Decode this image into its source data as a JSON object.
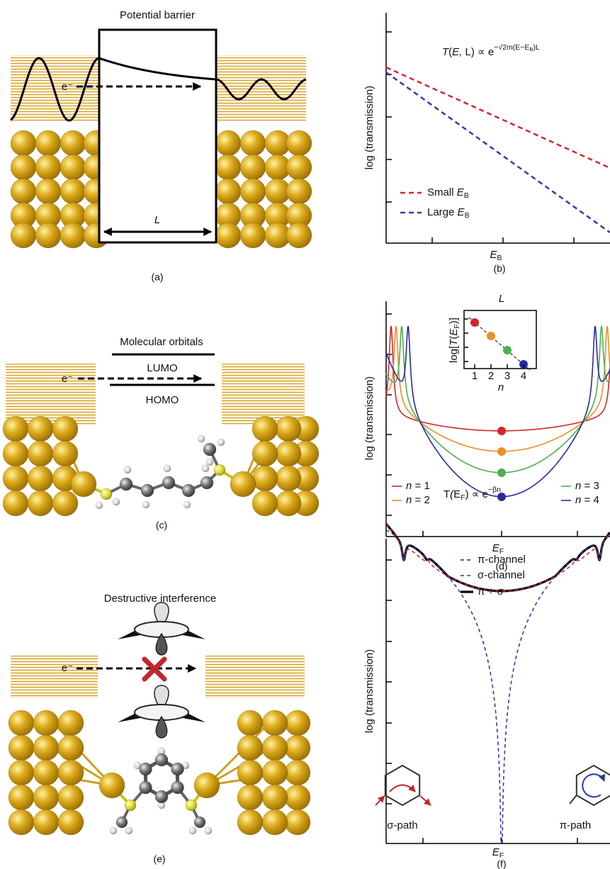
{
  "a": {
    "title": "Potential barrier",
    "electron": "e⁻",
    "width": "L",
    "caption": "(a)"
  },
  "b": {
    "formula": [
      "T",
      "(",
      "E",
      ", ",
      "L",
      ") ∝ e",
      "−√",
      "2m(E−E",
      "B",
      ")L"
    ],
    "legend": [
      [
        "Small ",
        "E",
        "B"
      ],
      [
        "Large ",
        "E",
        "B"
      ]
    ],
    "y_label": "log (transmission)",
    "x_label": [
      "E",
      "B"
    ],
    "caption": "(b)"
  },
  "c": {
    "title": "Molecular orbitals",
    "lumo": "LUMO",
    "homo": "HOMO",
    "electron": "e⁻",
    "caption": "(c)"
  },
  "d": {
    "top_label": "L",
    "inset_y_label": [
      "log[",
      "T",
      "(",
      "E",
      "F",
      ")]"
    ],
    "inset_x_ticks": [
      1,
      2,
      3,
      4
    ],
    "inset_x_label": "n",
    "legend": [
      [
        "n",
        " = 1"
      ],
      [
        "n",
        " = 2"
      ],
      [
        "n",
        " = 3"
      ],
      [
        "n",
        " = 4"
      ]
    ],
    "formula": [
      "T",
      "(",
      "E",
      "F",
      ") ∝ e",
      "−βn"
    ],
    "y_label": "log (transmission)",
    "x_label": [
      "E",
      "F"
    ],
    "caption": "(d)"
  },
  "e": {
    "title": "Destructive interference",
    "electron": "e⁻",
    "caption": "(e)"
  },
  "f": {
    "legend": [
      "π-channel",
      "σ-channel",
      "π + σ"
    ],
    "sigma_path": "σ-path",
    "pi_path": "π-path",
    "y_label": "log (transmission)",
    "x_label": [
      "E",
      "F"
    ],
    "caption": "(f)"
  }
}
